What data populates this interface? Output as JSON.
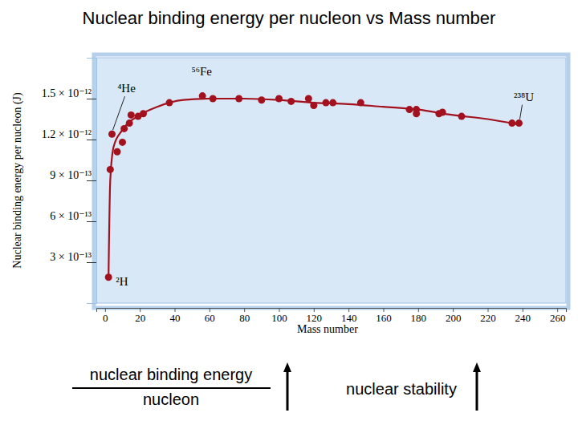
{
  "chart_data": {
    "type": "scatter",
    "title": "Nuclear binding energy per nucleon vs Mass number",
    "x_label": "Mass number",
    "y_label": "Nuclear binding energy per nucleon (J)",
    "xlim": [
      -5,
      265
    ],
    "xticks": [
      0,
      20,
      40,
      60,
      80,
      100,
      120,
      140,
      160,
      180,
      200,
      220,
      240,
      260
    ],
    "ylim": [
      0,
      1.8e-12
    ],
    "yticks": [
      {
        "value": 3e-13,
        "label": "3 × 10⁻¹³"
      },
      {
        "value": 6e-13,
        "label": "6 × 10⁻¹³"
      },
      {
        "value": 9e-13,
        "label": "9 × 10⁻¹³"
      },
      {
        "value": 1.2e-12,
        "label": "1.2 × 10⁻¹²"
      },
      {
        "value": 1.5e-12,
        "label": "1.5 × 10⁻¹²"
      }
    ],
    "grid": false,
    "series": [
      {
        "type": "line",
        "color": "#a3111f",
        "x": [
          2,
          3,
          5,
          10,
          20,
          30,
          45,
          60,
          80,
          100,
          120,
          140,
          160,
          180,
          200,
          220,
          238
        ],
        "values": [
          1.9e-13,
          9e-13,
          1.15e-12,
          1.27e-12,
          1.38e-12,
          1.44e-12,
          1.49e-12,
          1.5e-12,
          1.5e-12,
          1.49e-12,
          1.47e-12,
          1.46e-12,
          1.44e-12,
          1.42e-12,
          1.38e-12,
          1.35e-12,
          1.31e-12
        ]
      },
      {
        "type": "scatter",
        "color": "#a3111f",
        "marker": "circle",
        "x": [
          2,
          3,
          4,
          7,
          10,
          11,
          14,
          15,
          19,
          22,
          37,
          56,
          62,
          77,
          90,
          100,
          107,
          117,
          120,
          127,
          131,
          147,
          175,
          179,
          179,
          192,
          194,
          205,
          234,
          238
        ],
        "values": [
          1.9e-13,
          9.8e-13,
          1.24e-12,
          1.11e-12,
          1.18e-12,
          1.28e-12,
          1.32e-12,
          1.38e-12,
          1.37e-12,
          1.39e-12,
          1.47e-12,
          1.52e-12,
          1.5e-12,
          1.5e-12,
          1.49e-12,
          1.5e-12,
          1.48e-12,
          1.5e-12,
          1.45e-12,
          1.47e-12,
          1.47e-12,
          1.47e-12,
          1.42e-12,
          1.42e-12,
          1.39e-12,
          1.39e-12,
          1.4e-12,
          1.37e-12,
          1.32e-12,
          1.32e-12
        ]
      }
    ],
    "annotations": [
      {
        "text": "⁴He",
        "x": 4,
        "y": 1.24e-12
      },
      {
        "text": "⁵⁶Fe",
        "x": 56,
        "y": 1.52e-12
      },
      {
        "text": "²³⁸U",
        "x": 238,
        "y": 1.32e-12
      },
      {
        "text": "²H",
        "x": 2,
        "y": 1.9e-13
      }
    ],
    "footer": {
      "numerator": "nuclear binding energy",
      "denominator": "nucleon",
      "stability": "nuclear stability"
    }
  }
}
